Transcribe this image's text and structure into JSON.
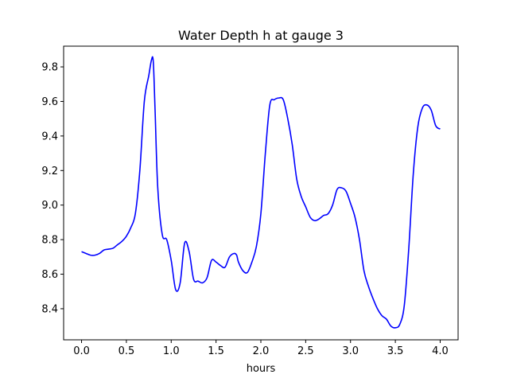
{
  "chart_data": {
    "type": "line",
    "title": "Water Depth h at gauge 3",
    "xlabel": "hours",
    "ylabel": "",
    "xlim": [
      -0.2,
      4.2
    ],
    "ylim": [
      8.22,
      9.92
    ],
    "xticks": [
      0.0,
      0.5,
      1.0,
      1.5,
      2.0,
      2.5,
      3.0,
      3.5,
      4.0
    ],
    "xtick_labels": [
      "0.0",
      "0.5",
      "1.0",
      "1.5",
      "2.0",
      "2.5",
      "3.0",
      "3.5",
      "4.0"
    ],
    "yticks": [
      8.4,
      8.6,
      8.8,
      9.0,
      9.2,
      9.4,
      9.6,
      9.8
    ],
    "ytick_labels": [
      "8.4",
      "8.6",
      "8.8",
      "9.0",
      "9.2",
      "9.4",
      "9.6",
      "9.8"
    ],
    "grid": false,
    "series": [
      {
        "color": "#0000ff",
        "x": [
          0.0,
          0.05,
          0.1,
          0.15,
          0.2,
          0.25,
          0.3,
          0.35,
          0.4,
          0.45,
          0.5,
          0.55,
          0.6,
          0.65,
          0.7,
          0.75,
          0.78,
          0.8,
          0.82,
          0.85,
          0.9,
          0.95,
          1.0,
          1.05,
          1.1,
          1.15,
          1.2,
          1.25,
          1.3,
          1.35,
          1.4,
          1.45,
          1.5,
          1.55,
          1.6,
          1.65,
          1.7,
          1.73,
          1.75,
          1.8,
          1.85,
          1.9,
          1.95,
          2.0,
          2.05,
          2.1,
          2.15,
          2.2,
          2.25,
          2.3,
          2.35,
          2.4,
          2.45,
          2.5,
          2.55,
          2.6,
          2.65,
          2.7,
          2.75,
          2.8,
          2.85,
          2.9,
          2.95,
          3.0,
          3.05,
          3.1,
          3.15,
          3.2,
          3.25,
          3.3,
          3.35,
          3.4,
          3.45,
          3.5,
          3.55,
          3.6,
          3.65,
          3.7,
          3.75,
          3.8,
          3.85,
          3.9,
          3.95,
          4.0
        ],
        "y": [
          8.73,
          8.72,
          8.71,
          8.71,
          8.72,
          8.74,
          8.745,
          8.75,
          8.77,
          8.79,
          8.82,
          8.87,
          8.95,
          9.2,
          9.6,
          9.75,
          9.84,
          9.83,
          9.55,
          9.1,
          8.83,
          8.8,
          8.68,
          8.51,
          8.55,
          8.78,
          8.73,
          8.57,
          8.56,
          8.55,
          8.58,
          8.68,
          8.67,
          8.65,
          8.64,
          8.7,
          8.72,
          8.71,
          8.67,
          8.62,
          8.61,
          8.67,
          8.76,
          8.95,
          9.3,
          9.58,
          9.61,
          9.62,
          9.61,
          9.5,
          9.35,
          9.15,
          9.05,
          8.99,
          8.93,
          8.91,
          8.92,
          8.94,
          8.95,
          9.0,
          9.09,
          9.1,
          9.08,
          9.01,
          8.93,
          8.8,
          8.62,
          8.53,
          8.46,
          8.4,
          8.36,
          8.34,
          8.3,
          8.29,
          8.31,
          8.42,
          8.75,
          9.18,
          9.45,
          9.56,
          9.58,
          9.55,
          9.46,
          9.44
        ]
      }
    ]
  }
}
